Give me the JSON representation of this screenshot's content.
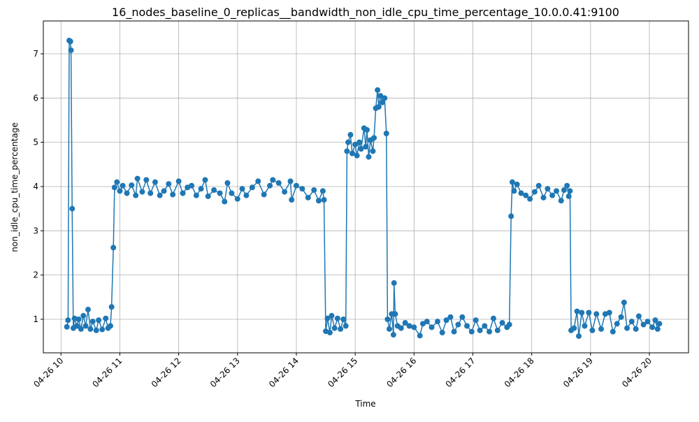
{
  "chart_data": {
    "type": "line",
    "title": "16_nodes_baseline_0_replicas__bandwidth_non_idle_cpu_time_percentage_10.0.0.41:9100",
    "x_label": "Time",
    "y_label": "non_idle_cpu_time_percentage",
    "xlim": [
      9.7,
      20.665
    ],
    "ylim": [
      0.242,
      7.742
    ],
    "xticks": [
      {
        "value": 10,
        "label": "04-26 10"
      },
      {
        "value": 11,
        "label": "04-26 11"
      },
      {
        "value": 12,
        "label": "04-26 12"
      },
      {
        "value": 13,
        "label": "04-26 13"
      },
      {
        "value": 14,
        "label": "04-26 14"
      },
      {
        "value": 15,
        "label": "04-26 15"
      },
      {
        "value": 16,
        "label": "04-26 16"
      },
      {
        "value": 17,
        "label": "04-26 17"
      },
      {
        "value": 18,
        "label": "04-26 18"
      },
      {
        "value": 19,
        "label": "04-26 19"
      },
      {
        "value": 20,
        "label": "04-26 20"
      }
    ],
    "yticks": [
      1,
      2,
      3,
      4,
      5,
      6,
      7
    ],
    "grid": true,
    "color": "#1f77b4",
    "x": [
      10.1,
      10.12,
      10.14,
      10.16,
      10.17,
      10.19,
      10.21,
      10.23,
      10.27,
      10.3,
      10.34,
      10.38,
      10.42,
      10.46,
      10.5,
      10.54,
      10.6,
      10.64,
      10.7,
      10.76,
      10.8,
      10.84,
      10.86,
      10.89,
      10.91,
      10.95,
      11.0,
      11.05,
      11.12,
      11.2,
      11.27,
      11.3,
      11.38,
      11.45,
      11.52,
      11.6,
      11.68,
      11.75,
      11.83,
      11.9,
      12.0,
      12.07,
      12.15,
      12.22,
      12.3,
      12.38,
      12.45,
      12.5,
      12.6,
      12.7,
      12.78,
      12.83,
      12.9,
      13.0,
      13.08,
      13.15,
      13.25,
      13.35,
      13.45,
      13.55,
      13.6,
      13.7,
      13.8,
      13.9,
      13.92,
      14.0,
      14.1,
      14.2,
      14.3,
      14.38,
      14.45,
      14.47,
      14.5,
      14.53,
      14.57,
      14.6,
      14.65,
      14.7,
      14.75,
      14.8,
      14.84,
      14.86,
      14.88,
      14.92,
      14.95,
      15.0,
      15.03,
      15.07,
      15.1,
      15.15,
      15.18,
      15.2,
      15.23,
      15.26,
      15.3,
      15.32,
      15.35,
      15.38,
      15.4,
      15.43,
      15.46,
      15.5,
      15.53,
      15.55,
      15.58,
      15.62,
      15.65,
      15.66,
      15.68,
      15.72,
      15.78,
      15.85,
      15.92,
      16.0,
      16.1,
      16.15,
      16.22,
      16.3,
      16.4,
      16.48,
      16.55,
      16.62,
      16.68,
      16.75,
      16.82,
      16.9,
      16.98,
      17.05,
      17.12,
      17.2,
      17.28,
      17.35,
      17.42,
      17.5,
      17.58,
      17.62,
      17.65,
      17.67,
      17.7,
      17.75,
      17.82,
      17.9,
      17.97,
      18.05,
      18.12,
      18.2,
      18.27,
      18.35,
      18.42,
      18.5,
      18.55,
      18.6,
      18.63,
      18.65,
      18.67,
      18.72,
      18.77,
      18.8,
      18.85,
      18.9,
      18.97,
      19.03,
      19.1,
      19.18,
      19.25,
      19.32,
      19.38,
      19.45,
      19.52,
      19.57,
      19.62,
      19.7,
      19.77,
      19.82,
      19.9,
      19.97,
      20.05,
      20.1,
      20.14,
      20.17
    ],
    "values": [
      0.83,
      0.98,
      7.3,
      7.28,
      7.08,
      3.5,
      0.8,
      1.02,
      0.85,
      1.0,
      0.78,
      1.08,
      0.85,
      1.22,
      0.78,
      0.95,
      0.75,
      0.98,
      0.77,
      1.02,
      0.8,
      0.85,
      1.28,
      2.62,
      3.98,
      4.1,
      3.9,
      4.02,
      3.85,
      4.03,
      3.8,
      4.18,
      3.88,
      4.15,
      3.85,
      4.1,
      3.8,
      3.9,
      4.06,
      3.82,
      4.12,
      3.85,
      3.98,
      4.02,
      3.8,
      3.95,
      4.15,
      3.78,
      3.92,
      3.85,
      3.66,
      4.08,
      3.85,
      3.72,
      3.95,
      3.8,
      3.98,
      4.12,
      3.82,
      4.02,
      4.15,
      4.08,
      3.88,
      4.12,
      3.7,
      4.02,
      3.95,
      3.75,
      3.92,
      3.68,
      3.9,
      3.7,
      0.73,
      1.02,
      0.7,
      1.08,
      0.8,
      1.02,
      0.78,
      1.0,
      0.85,
      4.8,
      5.0,
      5.17,
      4.75,
      4.95,
      4.7,
      5.0,
      4.85,
      5.32,
      4.9,
      5.28,
      4.67,
      5.05,
      4.8,
      5.1,
      5.77,
      6.18,
      5.8,
      6.05,
      5.9,
      6.0,
      5.2,
      1.0,
      0.78,
      1.12,
      0.65,
      1.82,
      1.12,
      0.85,
      0.8,
      0.92,
      0.85,
      0.82,
      0.63,
      0.9,
      0.95,
      0.82,
      0.95,
      0.7,
      0.98,
      1.05,
      0.72,
      0.88,
      1.05,
      0.85,
      0.72,
      0.98,
      0.75,
      0.85,
      0.72,
      1.02,
      0.75,
      0.92,
      0.82,
      0.88,
      3.33,
      4.1,
      3.9,
      4.05,
      3.85,
      3.8,
      3.72,
      3.88,
      4.02,
      3.75,
      3.95,
      3.8,
      3.9,
      3.68,
      3.92,
      4.02,
      3.78,
      3.9,
      0.75,
      0.8,
      1.18,
      0.62,
      1.15,
      0.85,
      1.15,
      0.75,
      1.12,
      0.78,
      1.12,
      1.15,
      0.72,
      0.9,
      1.05,
      1.38,
      0.8,
      0.95,
      0.78,
      1.07,
      0.88,
      0.95,
      0.82,
      0.98,
      0.78,
      0.9
    ]
  }
}
